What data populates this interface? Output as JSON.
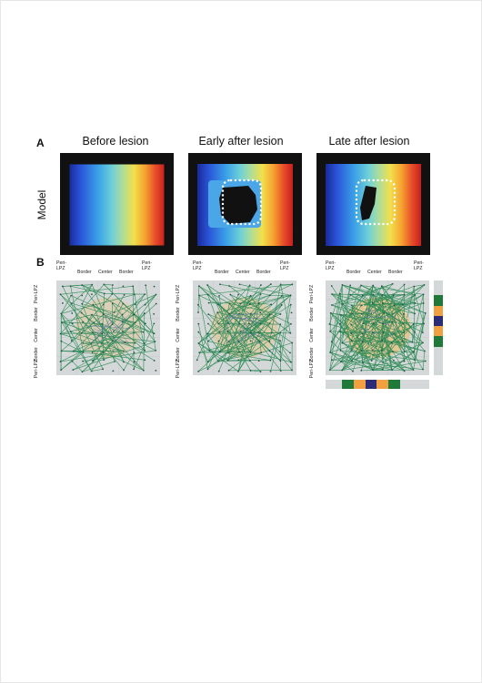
{
  "panel_a": {
    "letter": "A",
    "row_label": "Model",
    "titles": [
      "Before lesion",
      "Early after lesion",
      "Late after lesion"
    ]
  },
  "panel_b": {
    "letter": "B",
    "x_labels": {
      "peri_left_1": "Peri-",
      "peri_left_2": "LPZ",
      "border_left": "Border",
      "center": "Center",
      "border_right": "Border",
      "peri_right_1": "Peri-",
      "peri_right_2": "LPZ"
    },
    "y_labels": {
      "peri_top": "Peri-LPZ",
      "border_top": "Border",
      "center": "Center",
      "border_bottom": "Border",
      "peri_bottom": "Peri-LPZ"
    }
  },
  "colors": {
    "network_line": "#2e8b57",
    "node": "#2f4f4f",
    "lesion_zone": "#e8c07a",
    "bar_green": "#1f7a3a",
    "bar_orange": "#f0a040",
    "bar_navy": "#2b2b7a",
    "bar_gray": "#d9dbdb"
  }
}
